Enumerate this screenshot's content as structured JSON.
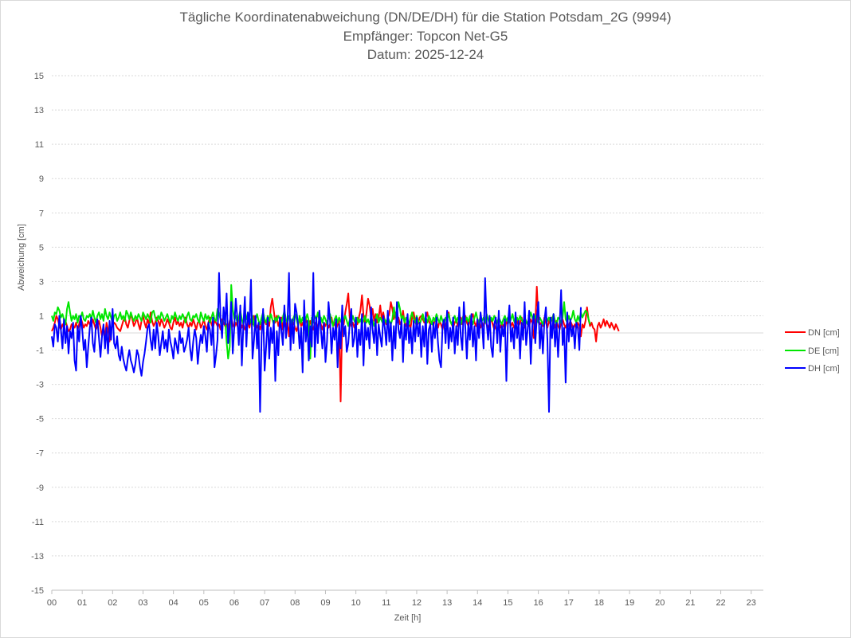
{
  "chart_data": {
    "type": "line",
    "title": "Tägliche Koordinatenabweichung (DN/DE/DH) für die Station Potsdam_2G (9994)",
    "subtitle_1": "Empfänger: Topcon Net-G5",
    "subtitle_2": "Datum: 2025-12-24",
    "xlabel": "Zeit [h]",
    "ylabel": "Abweichung [cm]",
    "xlim": [
      0,
      23.4
    ],
    "ylim": [
      -15,
      15
    ],
    "x_ticks": [
      "00",
      "01",
      "02",
      "03",
      "04",
      "05",
      "06",
      "07",
      "08",
      "09",
      "10",
      "11",
      "12",
      "13",
      "14",
      "15",
      "16",
      "17",
      "18",
      "19",
      "20",
      "21",
      "22",
      "23"
    ],
    "y_ticks": [
      15,
      13,
      11,
      9,
      7,
      5,
      3,
      1,
      -1,
      -3,
      -5,
      -7,
      -9,
      -11,
      -13,
      -15
    ],
    "grid": "horizontal dotted",
    "legend_position": "right",
    "sample_interval_h": 0.05,
    "series": [
      {
        "name": "DN [cm]",
        "color": "#ff0000",
        "values": [
          0.1,
          0.3,
          0.6,
          1,
          0.8,
          0.4,
          0.2,
          0.5,
          0.3,
          0.7,
          0.4,
          0.1,
          0.2,
          0.5,
          0.4,
          0.3,
          0.6,
          0.2,
          0.5,
          0.9,
          0.6,
          0.3,
          0.5,
          0.4,
          0.7,
          0.5,
          0.4,
          0.8,
          0.5,
          0.2,
          0.4,
          0.7,
          0.3,
          -0.2,
          0.4,
          -0.3,
          0.6,
          0.2,
          -0.5,
          0.3,
          0.4,
          0.6,
          0.5,
          0.3,
          0.2,
          0.1,
          0.4,
          0.7,
          0.9,
          0.5,
          0.3,
          0.7,
          1.1,
          0.8,
          0.4,
          0.6,
          0.9,
          0.5,
          0.2,
          0.7,
          1,
          0.6,
          0.3,
          0.8,
          0.5,
          1.2,
          0.7,
          0.4,
          0.6,
          0.9,
          0.7,
          0.4,
          0.8,
          0.6,
          0.3,
          0.5,
          0.8,
          0.6,
          0.3,
          0.2,
          0.6,
          0.9,
          0.5,
          0.7,
          0.4,
          0.6,
          0.3,
          0.7,
          0.9,
          0.5,
          0.3,
          0.6,
          0.4,
          0.8,
          0.5,
          0.2,
          0.6,
          0.7,
          0.3,
          0.5,
          0.8,
          0.4,
          0.2,
          0.6,
          0.9,
          0.5,
          0.3,
          0.7,
          0.6,
          0.4,
          0.5,
          0.2,
          0.8,
          0.6,
          0.4,
          0.5,
          0.2,
          0.7,
          0.9,
          0.5,
          0.3,
          0.6,
          0.4,
          0.9,
          0.7,
          0.3,
          0.5,
          0.2,
          0.4,
          0.6,
          0.3,
          0.8,
          0.5,
          1,
          0.6,
          0.3,
          0.5,
          0.2,
          0.6,
          0.4,
          0.8,
          0.5,
          0.7,
          0.4,
          1.5,
          2,
          1.3,
          0.6,
          1,
          0.4,
          0.7,
          0.9,
          0.2,
          0.5,
          0.3,
          0.8,
          -0.2,
          0.7,
          0.4,
          0.6,
          0.3,
          0.1,
          0.5,
          0.8,
          0.4,
          0.6,
          0.2,
          0.9,
          0.5,
          0.3,
          0.7,
          0.4,
          0.2,
          0.6,
          0.5,
          0.3,
          0.8,
          0.5,
          0.2,
          0.6,
          0.4,
          0.7,
          0.3,
          0.5,
          0.9,
          0.4,
          0.6,
          0.2,
          0.5,
          0.7,
          -4,
          0.8,
          0.5,
          1.2,
          1.7,
          2.3,
          0.8,
          0.4,
          0.6,
          0.3,
          0.7,
          0.5,
          0.9,
          1.3,
          2.2,
          1,
          0.6,
          1.2,
          2,
          1.6,
          0.9,
          1.4,
          0.7,
          1.1,
          0.6,
          0.9,
          1.6,
          0.8,
          1.2,
          0.7,
          0.5,
          0.9,
          1.1,
          1.8,
          1.4,
          0.8,
          1.2,
          0.6,
          0.9,
          0.5,
          0.7,
          1.3,
          0.6,
          0.4,
          0.8,
          0.5,
          0.3,
          0.9,
          1.2,
          0.7,
          0.4,
          0.6,
          0.9,
          1,
          0.8,
          0.6,
          0.9,
          1.2,
          0.7,
          0.5,
          0.6,
          0.4,
          0.8,
          0.6,
          0.3,
          0.7,
          0.5,
          0.2,
          0.6,
          0.4,
          0.8,
          1.2,
          0.7,
          0.5,
          0.3,
          0.6,
          0.8,
          0.4,
          0.6,
          0.9,
          0.5,
          0.7,
          1,
          0.6,
          0.4,
          0.7,
          0.9,
          1.1,
          0.6,
          0.4,
          0.8,
          0.5,
          0.3,
          0.6,
          0.4,
          0.7,
          0.5,
          0.3,
          0.6,
          0.8,
          0.5,
          0.2,
          0.4,
          0.7,
          0.5,
          0.3,
          0.6,
          0.4,
          0.2,
          0.7,
          0.5,
          0.8,
          0.4,
          0.6,
          0.3,
          0.5,
          0.7,
          0.4,
          0.6,
          0.9,
          0.5,
          0.3,
          0.7,
          0.5,
          0.4,
          0.8,
          0.6,
          -0.3,
          0.5,
          2.7,
          0.8,
          0.5,
          0.6,
          0.4,
          0.9,
          0.6,
          0.3,
          0.7,
          0.5,
          0.9,
          0.6,
          0.3,
          0.7,
          0.4,
          0.2,
          0.6,
          0.8,
          0.5,
          0.3,
          0.6,
          0.4,
          0.7,
          0.5,
          0.2,
          0.5,
          0.3,
          0.6,
          0.4,
          -0.2,
          0.5,
          0.3,
          0.7,
          1.5,
          0.8,
          0.4,
          0.6,
          0.3,
          0.2,
          -0.5,
          0.4,
          0.6,
          0.3,
          0.5,
          0.8,
          0.4,
          0.7,
          0.5,
          0.3,
          0.6,
          0.4,
          0.2,
          0.5,
          0.3,
          0.1
        ],
        "data_label_note": ""
      },
      {
        "name": "DE [cm]",
        "color": "#00e600",
        "values": [
          1,
          0.7,
          1.2,
          1.1,
          1.5,
          1.3,
          0.9,
          1.1,
          0.8,
          0.5,
          1.4,
          1.8,
          1.2,
          0.7,
          1,
          0.8,
          1.1,
          0.6,
          1,
          0.9,
          1.2,
          0.8,
          0.7,
          1,
          0.9,
          1.1,
          0.8,
          1.3,
          0.9,
          0.6,
          1,
          1.2,
          0.8,
          1.1,
          0.7,
          1.4,
          1,
          0.8,
          1.2,
          0.9,
          0.6,
          1,
          1.1,
          0.7,
          0.9,
          1.2,
          0.8,
          1,
          0.7,
          1.3,
          1.1,
          0.8,
          1.2,
          0.9,
          0.7,
          1,
          0.8,
          1.1,
          0.9,
          0.7,
          1.2,
          1,
          0.8,
          1.1,
          0.9,
          0.6,
          1.2,
          1.3,
          0.9,
          0.7,
          1,
          0.8,
          1.2,
          1,
          0.7,
          0.9,
          1.1,
          0.8,
          0.6,
          1,
          0.8,
          1.2,
          0.9,
          0.7,
          1,
          0.8,
          1.1,
          0.9,
          0.6,
          1,
          1.2,
          0.8,
          0.7,
          1,
          0.9,
          1.1,
          0.8,
          0.6,
          1.2,
          0.9,
          0.7,
          1.1,
          0.8,
          1,
          0.6,
          0.9,
          1.2,
          0.8,
          0.7,
          1.4,
          1.1,
          0.8,
          0.3,
          1,
          0.9,
          -0.5,
          -1.5,
          -0.8,
          2.8,
          1.4,
          0.8,
          1,
          0.6,
          0.9,
          1.3,
          0.8,
          0.5,
          1,
          0.8,
          1.2,
          0.9,
          0.6,
          1,
          0.4,
          0.8,
          1.1,
          0.7,
          0.5,
          0.9,
          1.2,
          0.8,
          0.6,
          1,
          0.7,
          1.1,
          0.8,
          0.5,
          0.9,
          0.7,
          1,
          0.8,
          0.6,
          0.9,
          1.3,
          0.8,
          0.6,
          1,
          0.7,
          0.5,
          0.9,
          1.1,
          0.8,
          0.4,
          1,
          0.6,
          0.9,
          0.5,
          0.8,
          1.1,
          0.7,
          -1.5,
          0.9,
          0.6,
          1,
          0.8,
          1.2,
          0.7,
          0.9,
          0.6,
          1,
          0.8,
          0.5,
          0.9,
          1.1,
          0.7,
          0.4,
          0.8,
          1,
          0.6,
          0.9,
          0.7,
          0.5,
          0.8,
          1,
          0.7,
          0.4,
          0.8,
          0.6,
          1,
          0.7,
          0.5,
          0.9,
          0.6,
          0.8,
          0.5,
          0.7,
          1,
          0.6,
          0.8,
          0.5,
          0.9,
          0.7,
          0.4,
          0.8,
          1.1,
          0.6,
          0.9,
          0.7,
          0.5,
          0.8,
          0.6,
          0.9,
          0.7,
          0.5,
          0.8,
          1.5,
          0.9,
          1.1,
          1.8,
          1.4,
          0.8,
          1,
          0.6,
          0.9,
          0.7,
          0.5,
          0.9,
          1.2,
          0.8,
          0.6,
          1,
          0.7,
          0.5,
          0.8,
          1.1,
          0.7,
          0.9,
          0.6,
          1,
          0.8,
          0.5,
          0.9,
          0.7,
          1.1,
          0.8,
          0.6,
          1,
          0.7,
          0.5,
          0.9,
          0.8,
          1.1,
          0.7,
          0.5,
          0.8,
          1,
          0.6,
          0.9,
          0.7,
          0.5,
          0.8,
          1.1,
          0.7,
          0.9,
          0.6,
          1,
          0.8,
          0.5,
          0.9,
          1.2,
          0.8,
          0.6,
          1,
          0.7,
          0.9,
          0.6,
          1.1,
          0.8,
          0.5,
          0.9,
          0.7,
          1,
          0.8,
          0.6,
          0.9,
          0.7,
          0.5,
          0.8,
          1,
          0.7,
          0.9,
          0.6,
          0.8,
          1.1,
          0.7,
          0.5,
          0.9,
          0.7,
          1,
          0.8,
          0.6,
          0.9,
          0.7,
          0.5,
          0.8,
          1.2,
          0.9,
          0.7,
          1,
          0.8,
          0.6,
          0.9,
          0.7,
          0.5,
          0.8,
          1,
          0.7,
          0.9,
          0.6,
          0.8,
          1.1,
          0.7,
          0.5,
          0.9,
          0.8,
          0.6,
          0.9,
          1.8,
          0.8,
          0.6,
          1,
          0.7,
          0.9,
          1.3,
          0.8,
          0.6,
          1,
          0.7,
          1.2,
          0.9,
          1.1,
          1.3,
          1.2,
          0.8,
          0.5
        ],
        "data_label_note": ""
      },
      {
        "name": "DH [cm]",
        "color": "#0000ff",
        "values": [
          -0.2,
          -0.8,
          0.5,
          0.3,
          -0.5,
          1,
          0.2,
          -0.9,
          0.8,
          -0.6,
          0.4,
          -1.2,
          0.1,
          -0.3,
          0.6,
          -1.6,
          -2.2,
          0.4,
          -0.5,
          1,
          0.2,
          -1,
          -0.4,
          -2,
          -0.8,
          0.3,
          0.9,
          -0.6,
          -1.1,
          0.4,
          0.8,
          -0.3,
          -1.4,
          -0.2,
          0.5,
          -0.9,
          0.3,
          -1.2,
          0.7,
          -0.4,
          1.4,
          -0.6,
          -0.9,
          -0.2,
          -1.3,
          -1.6,
          -0.8,
          -1.5,
          -1.9,
          -2.2,
          -1.5,
          -1,
          -1.6,
          -1.9,
          -2.3,
          -1.8,
          -1,
          -1.3,
          -2,
          -2.5,
          -1.7,
          -1.2,
          -0.5,
          0.3,
          0.5,
          -0.4,
          -1,
          0.2,
          -0.9,
          0.6,
          -0.2,
          -1.3,
          -0.6,
          0.1,
          -0.9,
          -0.4,
          -1.1,
          0.2,
          -0.5,
          -0.9,
          -1.5,
          -0.3,
          -0.7,
          -1.2,
          0.1,
          -0.6,
          -0.3,
          -1.1,
          -0.8,
          -0.4,
          0.3,
          -0.9,
          -1.6,
          -0.5,
          0.2,
          -0.3,
          -1.8,
          -0.8,
          -0.1,
          -0.6,
          0.4,
          -0.2,
          -1.1,
          0.6,
          0.2,
          -0.7,
          0.9,
          -2,
          -1.3,
          -0.4,
          3.5,
          0.8,
          -0.3,
          1.5,
          0.5,
          2.3,
          -0.6,
          0.4,
          1.8,
          -1.2,
          0.3,
          2,
          0.9,
          -0.7,
          1.6,
          -1.9,
          0.4,
          2.1,
          -0.8,
          1.2,
          0.5,
          3.1,
          -1.5,
          -0.4,
          1,
          -0.9,
          0.6,
          -4.6,
          -0.2,
          1.4,
          -2.2,
          -0.8,
          0.9,
          -1.5,
          0.3,
          -0.6,
          0.7,
          -2.8,
          0.1,
          -1.3,
          0.9,
          0.2,
          -0.7,
          1.6,
          -0.3,
          0.6,
          3.5,
          -1,
          0.8,
          -0.6,
          1.7,
          1.2,
          0.5,
          -0.9,
          0.3,
          -2.3,
          1.9,
          -0.5,
          0.7,
          -1.6,
          0.4,
          -0.8,
          3.5,
          -1.4,
          0.9,
          -0.6,
          1.3,
          0.2,
          -0.9,
          0.6,
          -1.7,
          -0.5,
          1.8,
          0.7,
          -1.2,
          0.3,
          -0.4,
          0.8,
          -2,
          0.5,
          -0.9,
          1.6,
          -0.2,
          0.4,
          -1.1,
          -0.6,
          0.6,
          1.4,
          -0.8,
          -0.3,
          0.9,
          -1.4,
          0.2,
          -0.7,
          1.1,
          -1.9,
          0.6,
          -0.4,
          0.3,
          -0.9,
          1.5,
          0.2,
          -0.6,
          0.8,
          -1.3,
          0.5,
          -0.2,
          -0.8,
          1,
          0.3,
          -0.7,
          1.3,
          -0.5,
          0.6,
          -1.6,
          0.4,
          -0.9,
          1.8,
          0.2,
          -0.3,
          0.8,
          -1.7,
          0.5,
          -0.4,
          1.1,
          -0.6,
          0.3,
          -1.2,
          0.7,
          -0.5,
          0.9,
          -0.2,
          0.6,
          -1.4,
          0.4,
          -0.8,
          1.2,
          -1.8,
          0.2,
          0.5,
          -1.1,
          0.6,
          -0.3,
          0.9,
          -0.6,
          -1.6,
          -2,
          0.4,
          0.8,
          -0.6,
          1.3,
          -0.9,
          0.3,
          -0.5,
          0.9,
          -1.2,
          0.4,
          -0.7,
          1.5,
          -0.2,
          -1,
          1.8,
          0.3,
          -1.5,
          0.6,
          -0.4,
          1.1,
          -0.8,
          0.4,
          -1.6,
          0.8,
          -0.3,
          1.2,
          0.5,
          -0.9,
          3.2,
          0.6,
          -0.4,
          1,
          -0.8,
          -1.4,
          0.5,
          0.9,
          -0.6,
          1.3,
          -1.1,
          0.4,
          -0.2,
          0.8,
          -2.8,
          0.5,
          1.6,
          -0.5,
          0.3,
          -0.9,
          1.2,
          -0.3,
          0.7,
          -1.5,
          0.6,
          -0.4,
          1.8,
          -0.7,
          0.2,
          1.3,
          -1.8,
          0.4,
          1.1,
          -0.6,
          0.9,
          1.8,
          -0.9,
          0.5,
          -1.2,
          0.7,
          1.5,
          -0.4,
          -4.6,
          0.9,
          -0.3,
          1.1,
          -0.8,
          0.6,
          -1.4,
          0.4,
          2.5,
          -0.7,
          0.3,
          -2.9,
          1.2,
          -0.5,
          0.8,
          -0.2,
          0.4,
          -0.9,
          0.6,
          0.3,
          -1,
          1.5
        ],
        "data_label_note": ""
      }
    ]
  }
}
